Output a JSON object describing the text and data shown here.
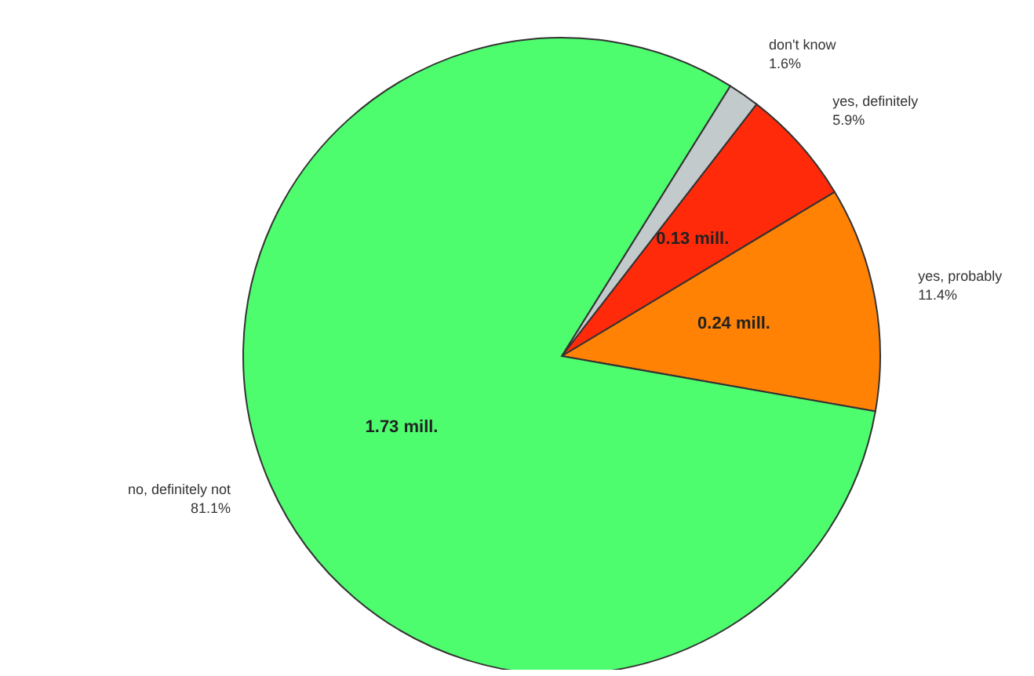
{
  "chart_data": {
    "type": "pie",
    "categories": [
      "yes, probably",
      "yes, definitely",
      "don't know",
      "no, definitely not"
    ],
    "values": [
      11.4,
      5.9,
      1.6,
      81.1
    ],
    "colors": [
      "#ff8205",
      "#ff2a0a",
      "#c2cacb",
      "#4dfd6e"
    ],
    "value_labels": [
      "11.4%",
      "5.9%",
      "1.6%",
      "81.1%"
    ],
    "annotations": [
      {
        "text": "0.24 mill.",
        "x": "yes, probably"
      },
      {
        "text": "0.13 mill.",
        "x": "yes, definitely"
      },
      {
        "text": "1.73 mill.",
        "x": "no, definitely not"
      }
    ],
    "legend": false
  }
}
